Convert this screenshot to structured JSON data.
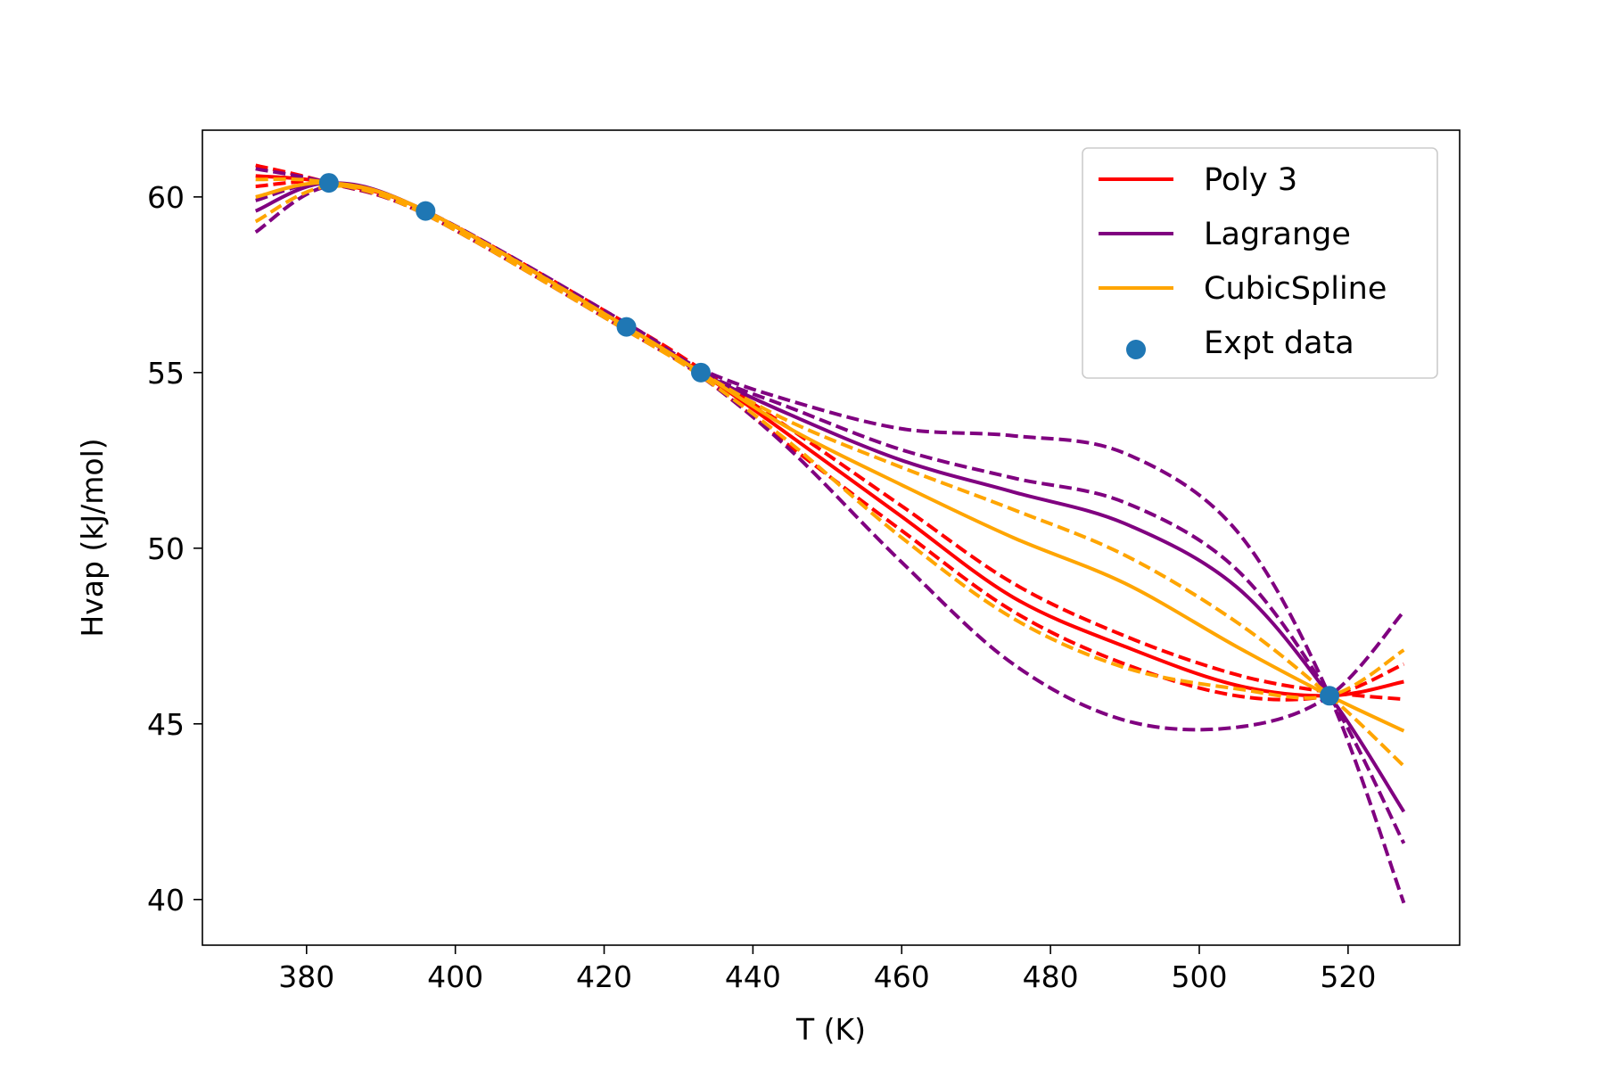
{
  "chart_data": {
    "type": "line",
    "title": "",
    "xlabel": "T (K)",
    "ylabel": "Hvap (kJ/mol)",
    "xlim": [
      366,
      535
    ],
    "ylim": [
      38.7,
      61.9
    ],
    "xticks": [
      380,
      400,
      420,
      440,
      460,
      480,
      500,
      520
    ],
    "yticks": [
      40,
      45,
      50,
      55,
      60
    ],
    "x_range": [
      373.15,
      527.5
    ],
    "legend_position": "upper right",
    "grid": false,
    "legend": [
      {
        "label": "Poly 3",
        "kind": "line",
        "color": "#ff0000"
      },
      {
        "label": "Lagrange",
        "kind": "line",
        "color": "#800080"
      },
      {
        "label": "CubicSpline",
        "kind": "line",
        "color": "#ffa500"
      },
      {
        "label": "Expt data",
        "kind": "scatter",
        "color": "#1f77b4"
      }
    ],
    "expt_data": [
      {
        "x": 383,
        "y": 60.4
      },
      {
        "x": 396,
        "y": 59.6
      },
      {
        "x": 423,
        "y": 56.3
      },
      {
        "x": 433,
        "y": 55.0
      },
      {
        "x": 517.5,
        "y": 45.8
      }
    ],
    "series": [
      {
        "method": "Poly 3",
        "color": "#ff0000",
        "style": "solid",
        "x": [
          373.15,
          383,
          396,
          423,
          433,
          445,
          460,
          475,
          490,
          505,
          517.5,
          527.5
        ],
        "y": [
          60.6,
          60.4,
          59.6,
          56.3,
          55.0,
          53.2,
          50.9,
          48.6,
          47.2,
          46.1,
          45.8,
          46.2
        ]
      },
      {
        "method": "Poly 3",
        "color": "#ff0000",
        "style": "dashed",
        "x": [
          373.15,
          383,
          396,
          423,
          433,
          445,
          460,
          475,
          490,
          505,
          517.5,
          527.5
        ],
        "y": [
          60.9,
          60.4,
          59.5,
          56.2,
          54.9,
          52.9,
          50.5,
          48.2,
          46.7,
          45.8,
          45.8,
          46.7
        ]
      },
      {
        "method": "Poly 3",
        "color": "#ff0000",
        "style": "dashed",
        "x": [
          373.15,
          383,
          396,
          423,
          433,
          445,
          460,
          475,
          490,
          505,
          517.5,
          527.5
        ],
        "y": [
          60.3,
          60.4,
          59.6,
          56.4,
          55.1,
          53.4,
          51.2,
          49.0,
          47.5,
          46.4,
          45.9,
          45.7
        ]
      },
      {
        "method": "Lagrange",
        "color": "#800080",
        "style": "solid",
        "x": [
          373.15,
          383,
          396,
          423,
          433,
          445,
          460,
          475,
          490,
          505,
          517.5,
          527.5
        ],
        "y": [
          59.6,
          60.4,
          59.6,
          56.3,
          55.0,
          53.8,
          52.5,
          51.6,
          50.7,
          48.9,
          45.8,
          42.5
        ]
      },
      {
        "method": "Lagrange",
        "color": "#800080",
        "style": "dashed",
        "x": [
          373.15,
          383,
          396,
          423,
          433,
          445,
          460,
          475,
          490,
          505,
          517.5,
          527.5
        ],
        "y": [
          59.0,
          60.3,
          59.6,
          56.4,
          55.1,
          54.2,
          53.4,
          53.2,
          52.7,
          50.5,
          45.8,
          39.9
        ]
      },
      {
        "method": "Lagrange",
        "color": "#800080",
        "style": "dashed",
        "x": [
          373.15,
          383,
          396,
          423,
          433,
          445,
          460,
          475,
          490,
          505,
          517.5,
          527.5
        ],
        "y": [
          60.8,
          60.4,
          59.5,
          56.2,
          54.9,
          52.8,
          49.6,
          46.7,
          45.1,
          44.9,
          45.8,
          48.2
        ]
      },
      {
        "method": "Lagrange",
        "color": "#800080",
        "style": "dashed",
        "x": [
          373.15,
          383,
          396,
          423,
          433,
          445,
          460,
          475,
          490,
          505,
          517.5,
          527.5
        ],
        "y": [
          59.9,
          60.4,
          59.6,
          56.3,
          55.0,
          54.0,
          52.8,
          52.0,
          51.3,
          49.4,
          45.8,
          41.6
        ]
      },
      {
        "method": "CubicSpline",
        "color": "#ffa500",
        "style": "solid",
        "x": [
          373.15,
          383,
          396,
          423,
          433,
          445,
          460,
          475,
          490,
          505,
          517.5,
          527.5
        ],
        "y": [
          60.0,
          60.4,
          59.6,
          56.3,
          55.0,
          53.4,
          51.8,
          50.3,
          49.0,
          47.2,
          45.8,
          44.8
        ]
      },
      {
        "method": "CubicSpline",
        "color": "#ffa500",
        "style": "dashed",
        "x": [
          373.15,
          383,
          396,
          423,
          433,
          445,
          460,
          475,
          490,
          505,
          517.5,
          527.5
        ],
        "y": [
          59.3,
          60.3,
          59.6,
          56.3,
          55.0,
          53.6,
          52.3,
          51.1,
          49.8,
          47.9,
          45.8,
          43.8
        ]
      },
      {
        "method": "CubicSpline",
        "color": "#ffa500",
        "style": "dashed",
        "x": [
          373.15,
          383,
          396,
          423,
          433,
          445,
          460,
          475,
          490,
          505,
          517.5,
          527.5
        ],
        "y": [
          60.5,
          60.4,
          59.5,
          56.2,
          54.9,
          53.0,
          50.3,
          48.0,
          46.6,
          46.0,
          45.8,
          47.1
        ]
      }
    ]
  }
}
